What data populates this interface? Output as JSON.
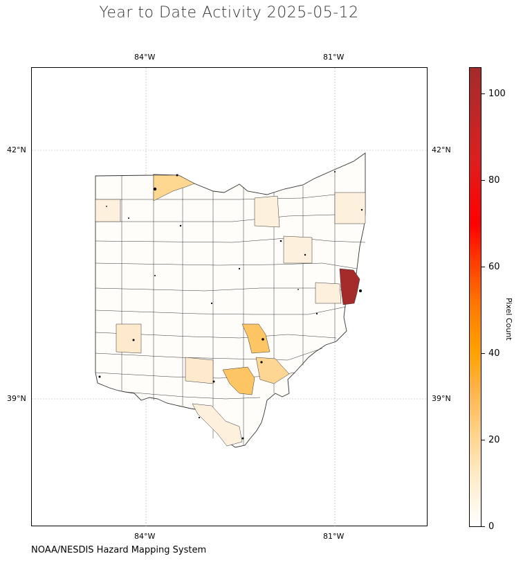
{
  "title": "Year to Date Activity 2025-05-12",
  "credit": "NOAA/NESDIS Hazard Mapping System",
  "map": {
    "region": "Ohio",
    "lon_ticks": [
      "84°W",
      "81°W"
    ],
    "lat_ticks": [
      "42°N",
      "39°N"
    ],
    "gridlines": true
  },
  "colorbar": {
    "label": "Pixel Count",
    "ticks": [
      "0",
      "20",
      "40",
      "60",
      "80",
      "100"
    ],
    "range": [
      0,
      106
    ],
    "colors": [
      "#ffffff",
      "#ffd48a",
      "#ffa200",
      "#ff0000",
      "#a52a2a"
    ]
  },
  "county_highlights": [
    {
      "shade": "max",
      "value": 106,
      "color": "#a52a2a"
    },
    {
      "shade": "high",
      "value": 24,
      "color": "#fec564"
    },
    {
      "shade": "medium",
      "value": 12,
      "color": "#fde2a8"
    },
    {
      "shade": "low",
      "value": 4,
      "color": "#fdf0dc"
    }
  ]
}
